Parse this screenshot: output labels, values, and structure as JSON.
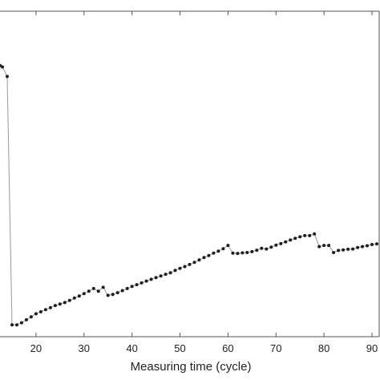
{
  "chart_data": {
    "type": "line",
    "xlabel": "Measuring time (cycle)",
    "ylabel": "",
    "title": "",
    "xlim": [
      12.5,
      91.5
    ],
    "ylim": [
      0,
      100
    ],
    "x_ticks": [
      20,
      30,
      40,
      50,
      60,
      70,
      80,
      90
    ],
    "x_tick_labels": [
      "20",
      "30",
      "40",
      "50",
      "60",
      "70",
      "80",
      "90"
    ],
    "grid": false,
    "legend": "none",
    "colors": {
      "line": "#9a9a9a",
      "marker": "#1e1e1e",
      "axis": "#555555"
    },
    "series": [
      {
        "x": [
          12.5,
          13,
          14,
          15,
          16,
          17,
          18,
          19,
          20,
          21,
          22,
          23,
          24,
          25,
          26,
          27,
          28,
          29,
          30,
          31,
          32,
          33,
          34,
          35,
          36,
          37,
          38,
          39,
          40,
          41,
          42,
          43,
          44,
          45,
          46,
          47,
          48,
          49,
          50,
          51,
          52,
          53,
          54,
          55,
          56,
          57,
          58,
          59,
          60,
          61,
          62,
          63,
          64,
          65,
          66,
          67,
          68,
          69,
          70,
          71,
          72,
          73,
          74,
          75,
          76,
          77,
          78,
          79,
          80,
          81,
          82,
          83,
          84,
          85,
          86,
          87,
          88,
          89,
          90,
          91
        ],
        "y": [
          88.5,
          88.0,
          84.8,
          1.3,
          1.3,
          2.0,
          3.0,
          4.0,
          5.0,
          5.7,
          6.4,
          7.1,
          7.8,
          8.3,
          8.8,
          9.5,
          10.3,
          11.0,
          11.8,
          12.6,
          13.5,
          12.6,
          13.9,
          11.2,
          11.5,
          12.1,
          12.8,
          13.5,
          14.2,
          14.8,
          15.4,
          16.0,
          16.6,
          17.2,
          17.7,
          18.3,
          18.8,
          19.6,
          20.3,
          20.9,
          21.6,
          22.3,
          23.1,
          23.9,
          24.6,
          25.4,
          26.1,
          26.9,
          28.0,
          25.4,
          25.3,
          25.5,
          25.6,
          25.9,
          26.4,
          27.0,
          26.8,
          27.4,
          28.1,
          28.6,
          29.2,
          29.8,
          30.4,
          30.9,
          31.3,
          31.3,
          31.9,
          27.6,
          28.0,
          28.0,
          25.6,
          26.3,
          26.5,
          26.7,
          26.8,
          27.3,
          27.6,
          27.9,
          28.3,
          28.5
        ]
      }
    ]
  }
}
